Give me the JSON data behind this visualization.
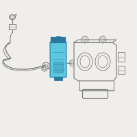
{
  "bg_color": "#f0eeeb",
  "line_color": "#999999",
  "line_color2": "#777777",
  "highlight_fill": "#5bc8e0",
  "highlight_edge": "#3a9ab8",
  "highlight_dark": "#2878a0",
  "white": "#ffffff",
  "figsize": [
    2.0,
    2.0
  ],
  "dpi": 100,
  "xlim": [
    0,
    200
  ],
  "ylim": [
    0,
    200
  ]
}
